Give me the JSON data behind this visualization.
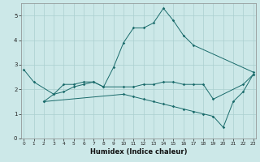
{
  "xlabel": "Humidex (Indice chaleur)",
  "background_color": "#cce8e8",
  "grid_color": "#aacfcf",
  "line_color": "#1a6b6b",
  "line1_x": [
    0,
    1,
    3,
    4,
    5,
    6,
    7,
    8,
    9,
    10,
    11,
    12,
    13,
    14,
    15,
    16,
    17,
    23
  ],
  "line1_y": [
    2.8,
    2.3,
    1.8,
    2.2,
    2.2,
    2.3,
    2.3,
    2.1,
    2.9,
    3.9,
    4.5,
    4.5,
    4.7,
    5.3,
    4.8,
    4.2,
    3.8,
    2.7
  ],
  "line2_x": [
    2,
    3,
    4,
    5,
    6,
    7,
    8,
    10,
    11,
    12,
    13,
    14,
    15,
    16,
    17,
    18,
    19,
    22,
    23
  ],
  "line2_y": [
    1.5,
    1.8,
    1.9,
    2.1,
    2.2,
    2.3,
    2.1,
    2.1,
    2.1,
    2.2,
    2.2,
    2.3,
    2.3,
    2.2,
    2.2,
    2.2,
    1.6,
    2.2,
    2.6
  ],
  "line3_x": [
    2,
    10,
    11,
    12,
    13,
    14,
    15,
    16,
    17,
    18,
    19,
    20,
    21,
    22,
    23
  ],
  "line3_y": [
    1.5,
    1.8,
    1.7,
    1.6,
    1.5,
    1.4,
    1.3,
    1.2,
    1.1,
    1.0,
    0.9,
    0.45,
    1.5,
    1.9,
    2.6
  ],
  "ylim": [
    0,
    5.5
  ],
  "xlim": [
    -0.3,
    23.3
  ],
  "yticks": [
    0,
    1,
    2,
    3,
    4,
    5
  ],
  "xticks": [
    0,
    1,
    2,
    3,
    4,
    5,
    6,
    7,
    8,
    9,
    10,
    11,
    12,
    13,
    14,
    15,
    16,
    17,
    18,
    19,
    20,
    21,
    22,
    23
  ]
}
